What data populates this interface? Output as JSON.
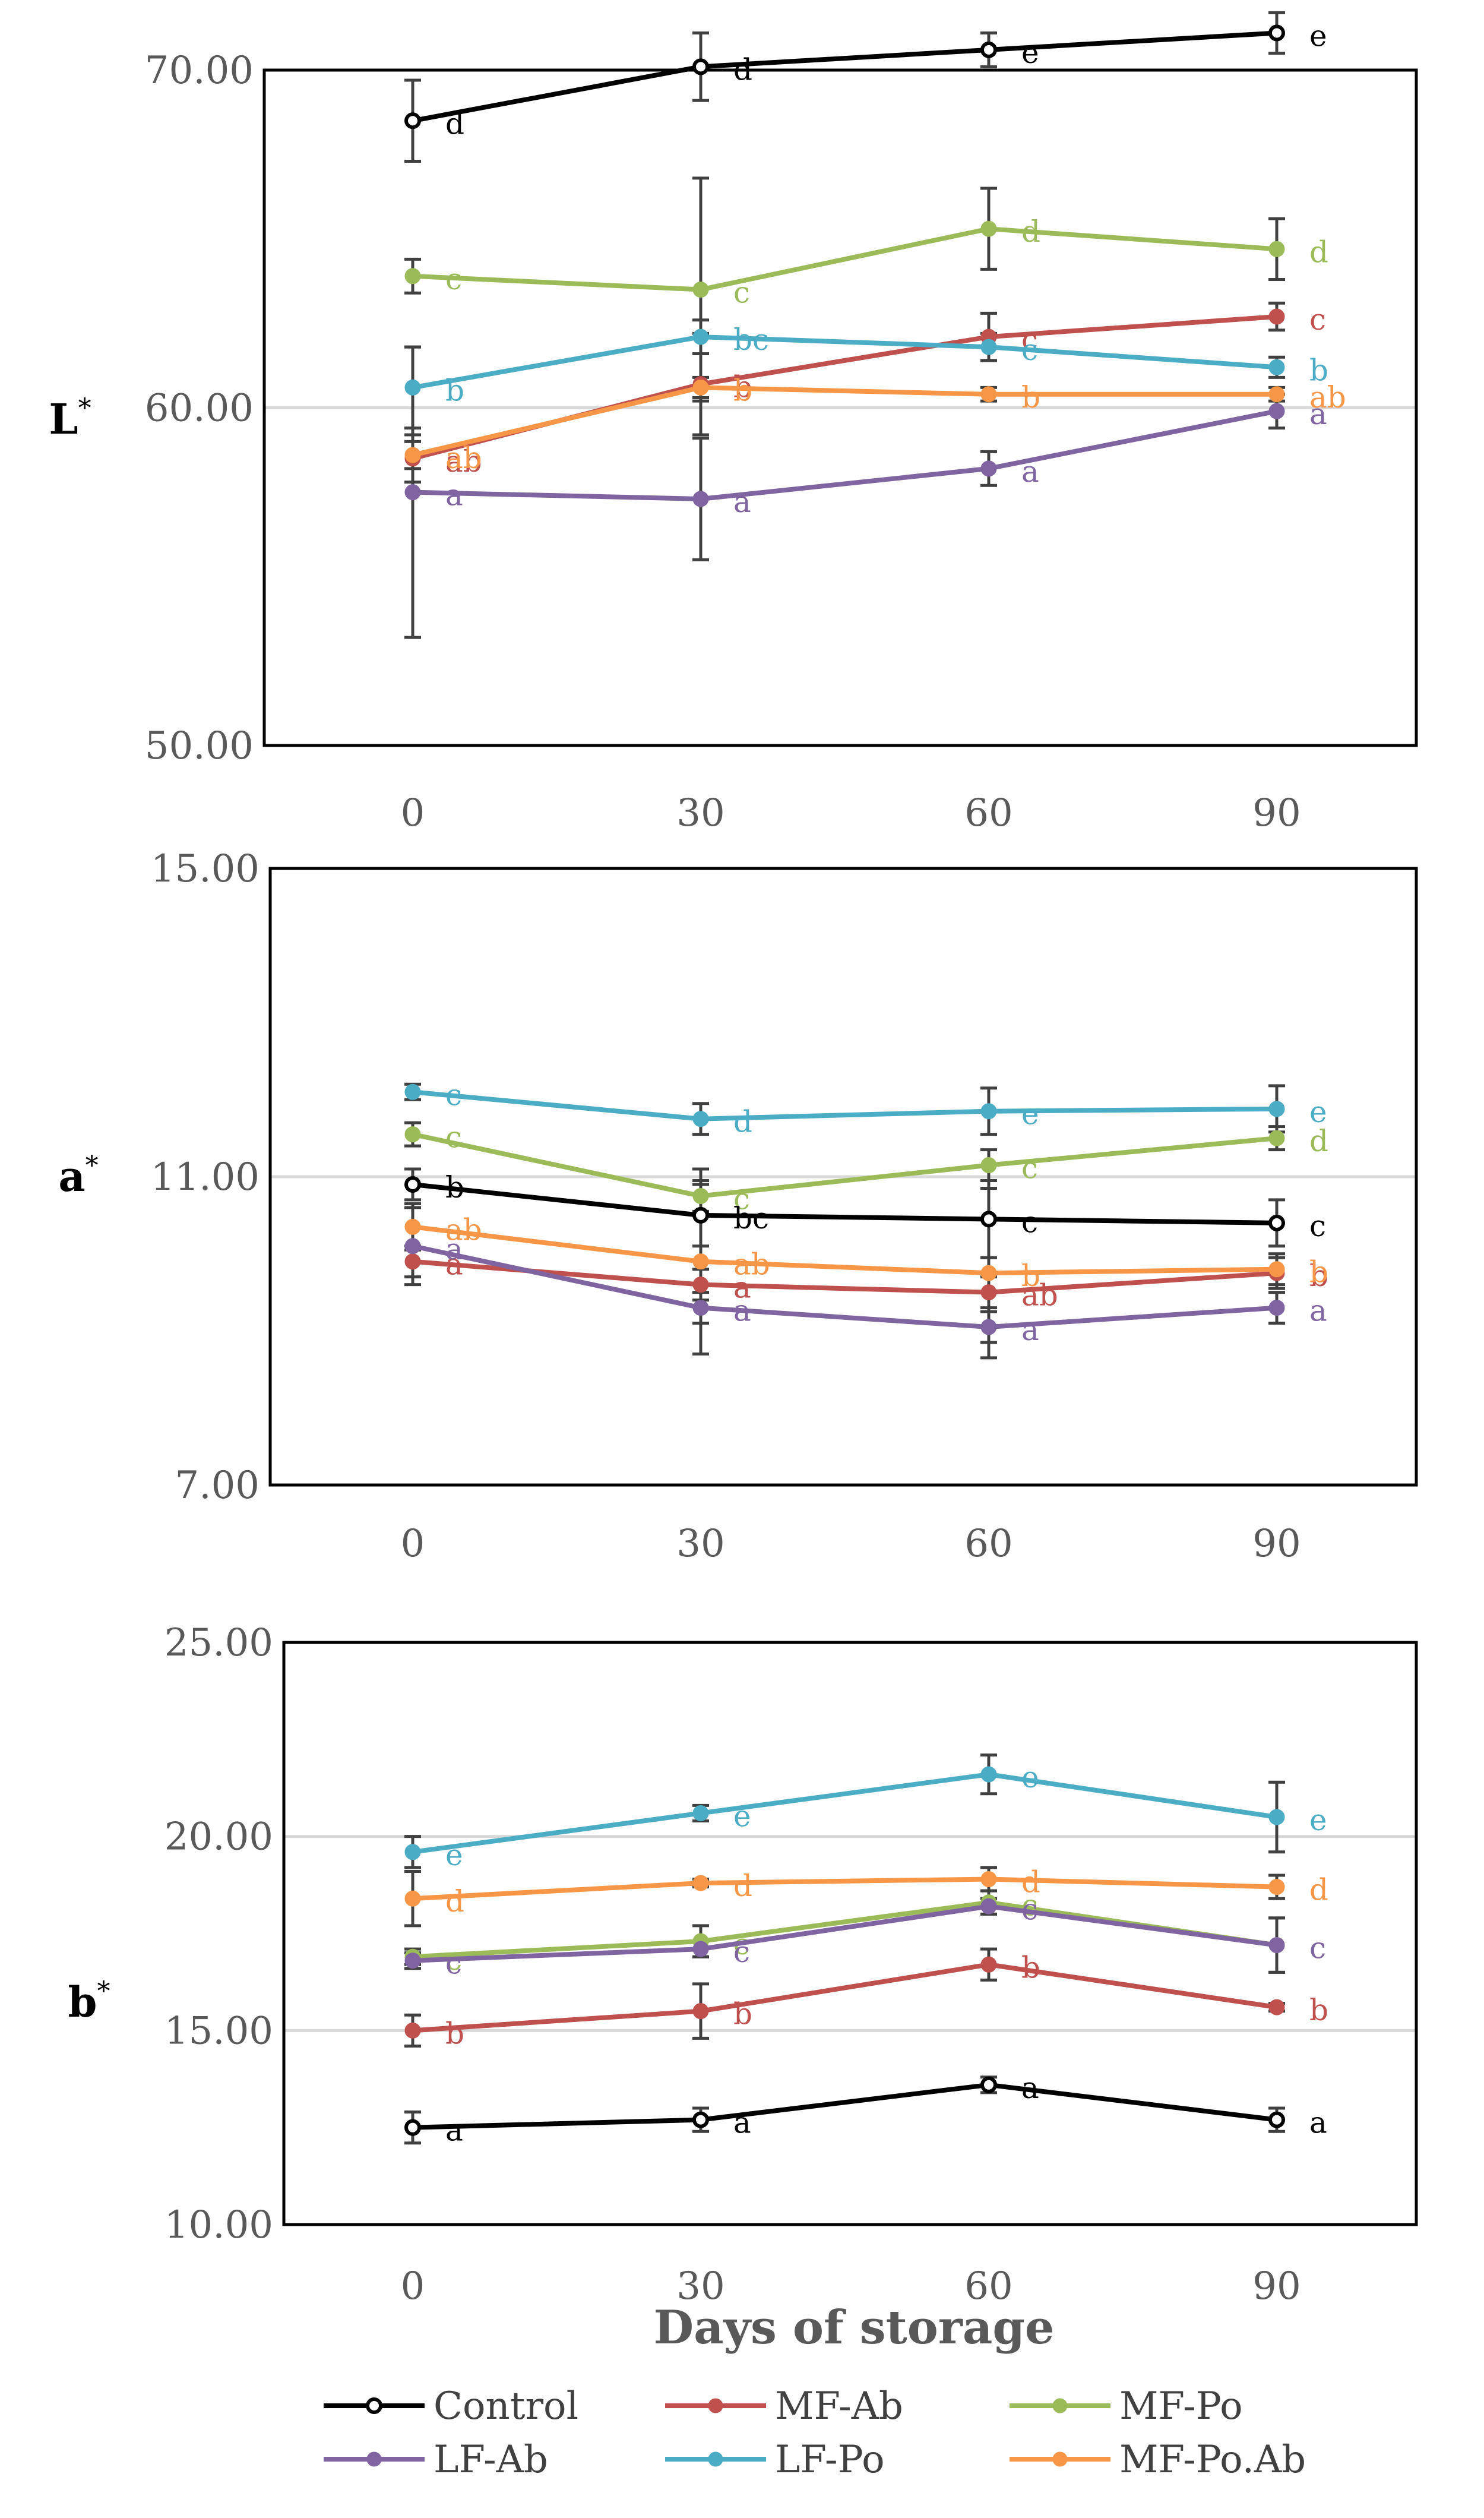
{
  "x_axis_title": "Days of storage",
  "colors": {
    "Control": "#000000",
    "MF-Ab": "#c0504d",
    "MF-Po": "#9bbb59",
    "LF-Ab": "#8064a2",
    "LF-Po": "#4bacc6",
    "MF-Po.Ab": "#f79646",
    "errorbar": "#404040",
    "gridline": "#d9d9d9"
  },
  "legend": [
    "Control",
    "MF-Ab",
    "MF-Po",
    "LF-Ab",
    "LF-Po",
    "MF-Po.Ab"
  ],
  "chart_data": [
    {
      "type": "line",
      "ylabel": "L",
      "ylabel_sup": "*",
      "categories": [
        "0",
        "30",
        "60",
        "90"
      ],
      "ylim": [
        50,
        70
      ],
      "yticks": [
        "50.00",
        "60.00",
        "70.00"
      ],
      "yticks_values": [
        50,
        60,
        70
      ],
      "gridlines": [
        60,
        70
      ],
      "series": [
        {
          "name": "Control",
          "values": [
            68.5,
            70.1,
            70.6,
            71.1
          ],
          "errors": [
            1.2,
            1.0,
            0.5,
            0.6
          ],
          "letters": [
            "d",
            "d",
            "e",
            "e"
          ]
        },
        {
          "name": "MF-Ab",
          "values": [
            58.5,
            60.7,
            62.1,
            62.7
          ],
          "errors": [
            0.7,
            1.5,
            0.7,
            0.4
          ],
          "letters": [
            "ab",
            "b",
            "c",
            "c"
          ]
        },
        {
          "name": "MF-Po",
          "values": [
            63.9,
            63.5,
            65.3,
            64.7
          ],
          "errors": [
            0.5,
            3.3,
            1.2,
            0.9
          ],
          "letters": [
            "c",
            "c",
            "d",
            "d"
          ]
        },
        {
          "name": "LF-Ab",
          "values": [
            57.5,
            57.3,
            58.2,
            59.9
          ],
          "errors": [
            4.3,
            1.8,
            0.5,
            0.5
          ],
          "letters": [
            "a",
            "a",
            "a",
            "a"
          ]
        },
        {
          "name": "LF-Po",
          "values": [
            60.6,
            62.1,
            61.8,
            61.2
          ],
          "errors": [
            1.2,
            0.5,
            0.4,
            0.3
          ],
          "letters": [
            "b",
            "bc",
            "c",
            "b"
          ]
        },
        {
          "name": "MF-Po.Ab",
          "values": [
            58.6,
            60.6,
            60.4,
            60.4
          ],
          "errors": [
            0.4,
            0.3,
            0.2,
            0.2
          ],
          "letters": [
            "ab",
            "b",
            "b",
            "ab"
          ]
        }
      ]
    },
    {
      "type": "line",
      "ylabel": "a",
      "ylabel_sup": "*",
      "categories": [
        "0",
        "30",
        "60",
        "90"
      ],
      "ylim": [
        7,
        15
      ],
      "yticks": [
        "7.00",
        "11.00",
        "15.00"
      ],
      "yticks_values": [
        7,
        11,
        15
      ],
      "gridlines": [
        11
      ],
      "series": [
        {
          "name": "Control",
          "values": [
            10.9,
            10.5,
            10.45,
            10.4
          ],
          "errors": [
            0.2,
            0.4,
            0.5,
            0.3
          ],
          "letters": [
            "b",
            "bc",
            "c",
            "c"
          ]
        },
        {
          "name": "MF-Ab",
          "values": [
            9.9,
            9.6,
            9.5,
            9.75
          ],
          "errors": [
            0.2,
            0.2,
            0.2,
            0.2
          ],
          "letters": [
            "a",
            "a",
            "ab",
            "b"
          ]
        },
        {
          "name": "MF-Po",
          "values": [
            11.55,
            10.75,
            11.15,
            11.5
          ],
          "errors": [
            0.15,
            0.2,
            0.2,
            0.15
          ],
          "letters": [
            "c",
            "c",
            "c",
            "d"
          ]
        },
        {
          "name": "LF-Ab",
          "values": [
            10.1,
            9.3,
            9.05,
            9.3
          ],
          "errors": [
            0.5,
            0.2,
            0.2,
            0.2
          ],
          "letters": [
            "a",
            "a",
            "a",
            "a"
          ]
        },
        {
          "name": "LF-Po",
          "values": [
            12.1,
            11.75,
            11.85,
            11.88
          ],
          "errors": [
            0.1,
            0.2,
            0.3,
            0.3
          ],
          "letters": [
            "c",
            "d",
            "e",
            "e"
          ]
        },
        {
          "name": "MF-Po.Ab",
          "values": [
            10.35,
            9.9,
            9.75,
            9.8
          ],
          "errors": [
            0.3,
            1.2,
            1.1,
            0.2
          ],
          "letters": [
            "ab",
            "ab",
            "b",
            "b"
          ]
        }
      ]
    },
    {
      "type": "line",
      "ylabel": "b",
      "ylabel_sup": "*",
      "categories": [
        "0",
        "30",
        "60",
        "90"
      ],
      "ylim": [
        10,
        25
      ],
      "yticks": [
        "10.00",
        "15.00",
        "20.00",
        "25.00"
      ],
      "yticks_values": [
        10,
        15,
        20,
        25
      ],
      "gridlines": [
        15,
        20
      ],
      "series": [
        {
          "name": "Control",
          "values": [
            12.5,
            12.7,
            13.6,
            12.7
          ],
          "errors": [
            0.4,
            0.3,
            0.2,
            0.3
          ],
          "letters": [
            "a",
            "a",
            "a",
            "a"
          ]
        },
        {
          "name": "MF-Ab",
          "values": [
            15.0,
            15.5,
            16.7,
            15.6
          ],
          "errors": [
            0.4,
            0.7,
            0.4,
            0.1
          ],
          "letters": [
            "b",
            "b",
            "b",
            "b"
          ]
        },
        {
          "name": "MF-Po",
          "values": [
            16.9,
            17.3,
            18.3,
            17.2
          ],
          "errors": [
            0.2,
            0.4,
            0.3,
            0.7
          ],
          "letters": [
            "c",
            "c",
            "c",
            "c"
          ]
        },
        {
          "name": "LF-Ab",
          "values": [
            16.8,
            17.1,
            18.2,
            17.2
          ],
          "errors": [
            0.2,
            0.2,
            0.2,
            0.7
          ],
          "letters": [
            "c",
            "c",
            "c",
            "c"
          ]
        },
        {
          "name": "LF-Po",
          "values": [
            19.6,
            20.6,
            21.6,
            20.5
          ],
          "errors": [
            0.4,
            0.2,
            0.5,
            0.9
          ],
          "letters": [
            "e",
            "e",
            "e",
            "e"
          ]
        },
        {
          "name": "MF-Po.Ab",
          "values": [
            18.4,
            18.8,
            18.9,
            18.7
          ],
          "errors": [
            0.7,
            0.1,
            0.3,
            0.3
          ],
          "letters": [
            "d",
            "d",
            "d",
            "d"
          ]
        }
      ]
    }
  ]
}
